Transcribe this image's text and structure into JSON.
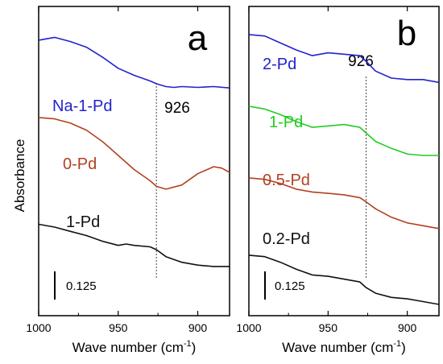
{
  "chart_data": {
    "type": "line",
    "ylabel": "Absorbance",
    "panels": [
      {
        "panel_label": "a",
        "xlabel": "Wave number (cm",
        "xlabel_sup": "-1",
        "xlabel_close": ")",
        "xlim": [
          1000,
          880
        ],
        "xticks": [
          1000,
          950,
          900
        ],
        "reference_line": {
          "x": 926,
          "label": "926"
        },
        "scale_bar": {
          "label": "0.125",
          "value": 0.125
        },
        "series": [
          {
            "name": "Na-1-Pd",
            "color": "#2222cc",
            "x": [
              1000,
              990,
              980,
              970,
              960,
              950,
              940,
              930,
              926,
              920,
              915,
              910,
              900,
              890,
              880
            ],
            "y": [
              0.98,
              0.99,
              0.975,
              0.955,
              0.92,
              0.88,
              0.855,
              0.835,
              0.825,
              0.815,
              0.812,
              0.815,
              0.812,
              0.815,
              0.81
            ]
          },
          {
            "name": "0-Pd",
            "color": "#b34020",
            "x": [
              1000,
              990,
              980,
              970,
              960,
              950,
              940,
              930,
              926,
              920,
              910,
              900,
              890,
              885,
              880
            ],
            "y": [
              0.705,
              0.7,
              0.685,
              0.66,
              0.62,
              0.57,
              0.52,
              0.48,
              0.46,
              0.45,
              0.465,
              0.505,
              0.53,
              0.525,
              0.51
            ]
          },
          {
            "name": "1-Pd",
            "color": "#111111",
            "x": [
              1000,
              990,
              980,
              970,
              960,
              950,
              945,
              940,
              930,
              926,
              920,
              910,
              900,
              890,
              880
            ],
            "y": [
              0.325,
              0.315,
              0.3,
              0.285,
              0.265,
              0.25,
              0.255,
              0.25,
              0.245,
              0.235,
              0.21,
              0.19,
              0.18,
              0.175,
              0.175
            ]
          }
        ]
      },
      {
        "panel_label": "b",
        "xlabel": "Wave number (cm",
        "xlabel_sup": "-1",
        "xlabel_close": ")",
        "xlim": [
          1000,
          880
        ],
        "xticks": [
          1000,
          950,
          900
        ],
        "reference_line": {
          "x": 926,
          "label": "926"
        },
        "scale_bar": {
          "label": "0.125",
          "value": 0.125
        },
        "series": [
          {
            "name": "2-Pd",
            "color": "#2222cc",
            "x": [
              1000,
              990,
              980,
              970,
              960,
              950,
              940,
              930,
              926,
              920,
              910,
              900,
              890,
              880
            ],
            "y": [
              1.0,
              0.995,
              0.97,
              0.945,
              0.925,
              0.935,
              0.93,
              0.925,
              0.905,
              0.87,
              0.845,
              0.84,
              0.84,
              0.83
            ]
          },
          {
            "name": "1-Pd",
            "color": "#22cc22",
            "x": [
              1000,
              990,
              980,
              970,
              960,
              950,
              940,
              930,
              926,
              920,
              910,
              900,
              890,
              880
            ],
            "y": [
              0.745,
              0.735,
              0.715,
              0.69,
              0.67,
              0.675,
              0.68,
              0.67,
              0.65,
              0.62,
              0.595,
              0.575,
              0.57,
              0.57
            ]
          },
          {
            "name": "0.5-Pd",
            "color": "#b34020",
            "x": [
              1000,
              990,
              980,
              970,
              960,
              950,
              940,
              930,
              926,
              920,
              910,
              900,
              890,
              880
            ],
            "y": [
              0.49,
              0.485,
              0.47,
              0.45,
              0.44,
              0.435,
              0.43,
              0.42,
              0.405,
              0.38,
              0.35,
              0.33,
              0.32,
              0.31
            ]
          },
          {
            "name": "0.2-Pd",
            "color": "#111111",
            "x": [
              1000,
              990,
              980,
              970,
              960,
              950,
              940,
              930,
              926,
              920,
              910,
              900,
              890,
              880
            ],
            "y": [
              0.215,
              0.21,
              0.19,
              0.165,
              0.145,
              0.14,
              0.13,
              0.12,
              0.1,
              0.08,
              0.065,
              0.06,
              0.05,
              0.04
            ]
          }
        ]
      }
    ]
  }
}
